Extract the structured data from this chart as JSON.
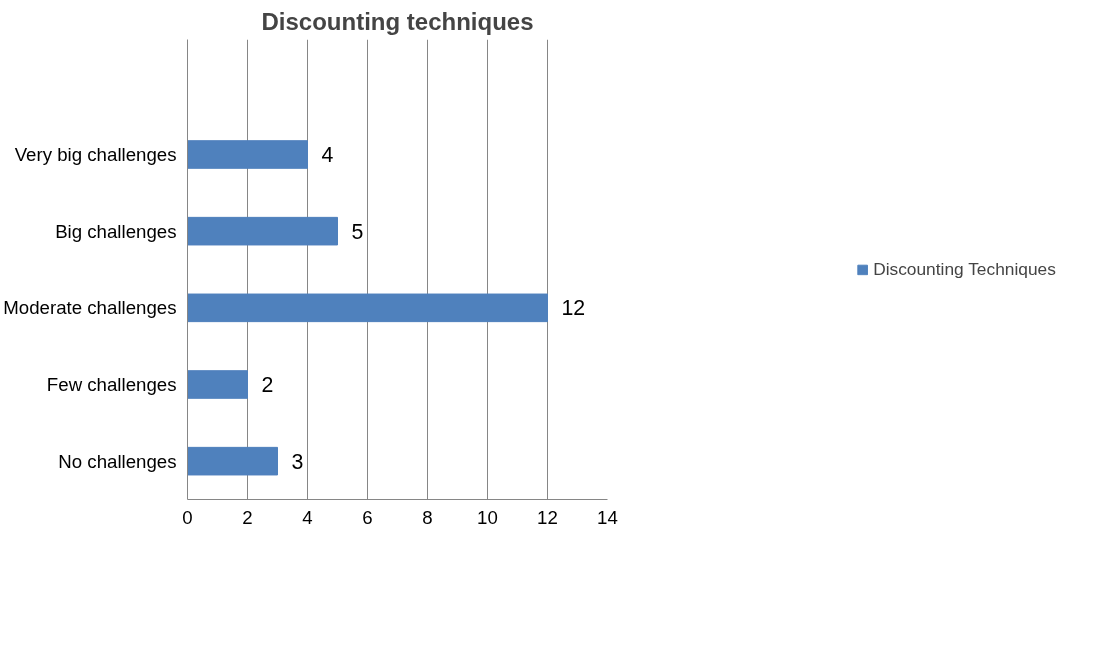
{
  "chart_data": {
    "type": "bar",
    "orientation": "horizontal",
    "title": "Discounting techniques",
    "categories": [
      null,
      "Very big challenges",
      "Big challenges",
      "Moderate challenges",
      "Few challenges",
      "No challenges"
    ],
    "series": [
      {
        "name": "Discounting Techniques",
        "color": "#4f81bd",
        "values": [
          null,
          4,
          5,
          12,
          2,
          3
        ]
      }
    ],
    "xlim": [
      0,
      14
    ],
    "xticks": [
      0,
      2,
      4,
      6,
      8,
      10,
      12,
      14
    ],
    "grid": "x",
    "legend": "right",
    "data_labels": true
  }
}
